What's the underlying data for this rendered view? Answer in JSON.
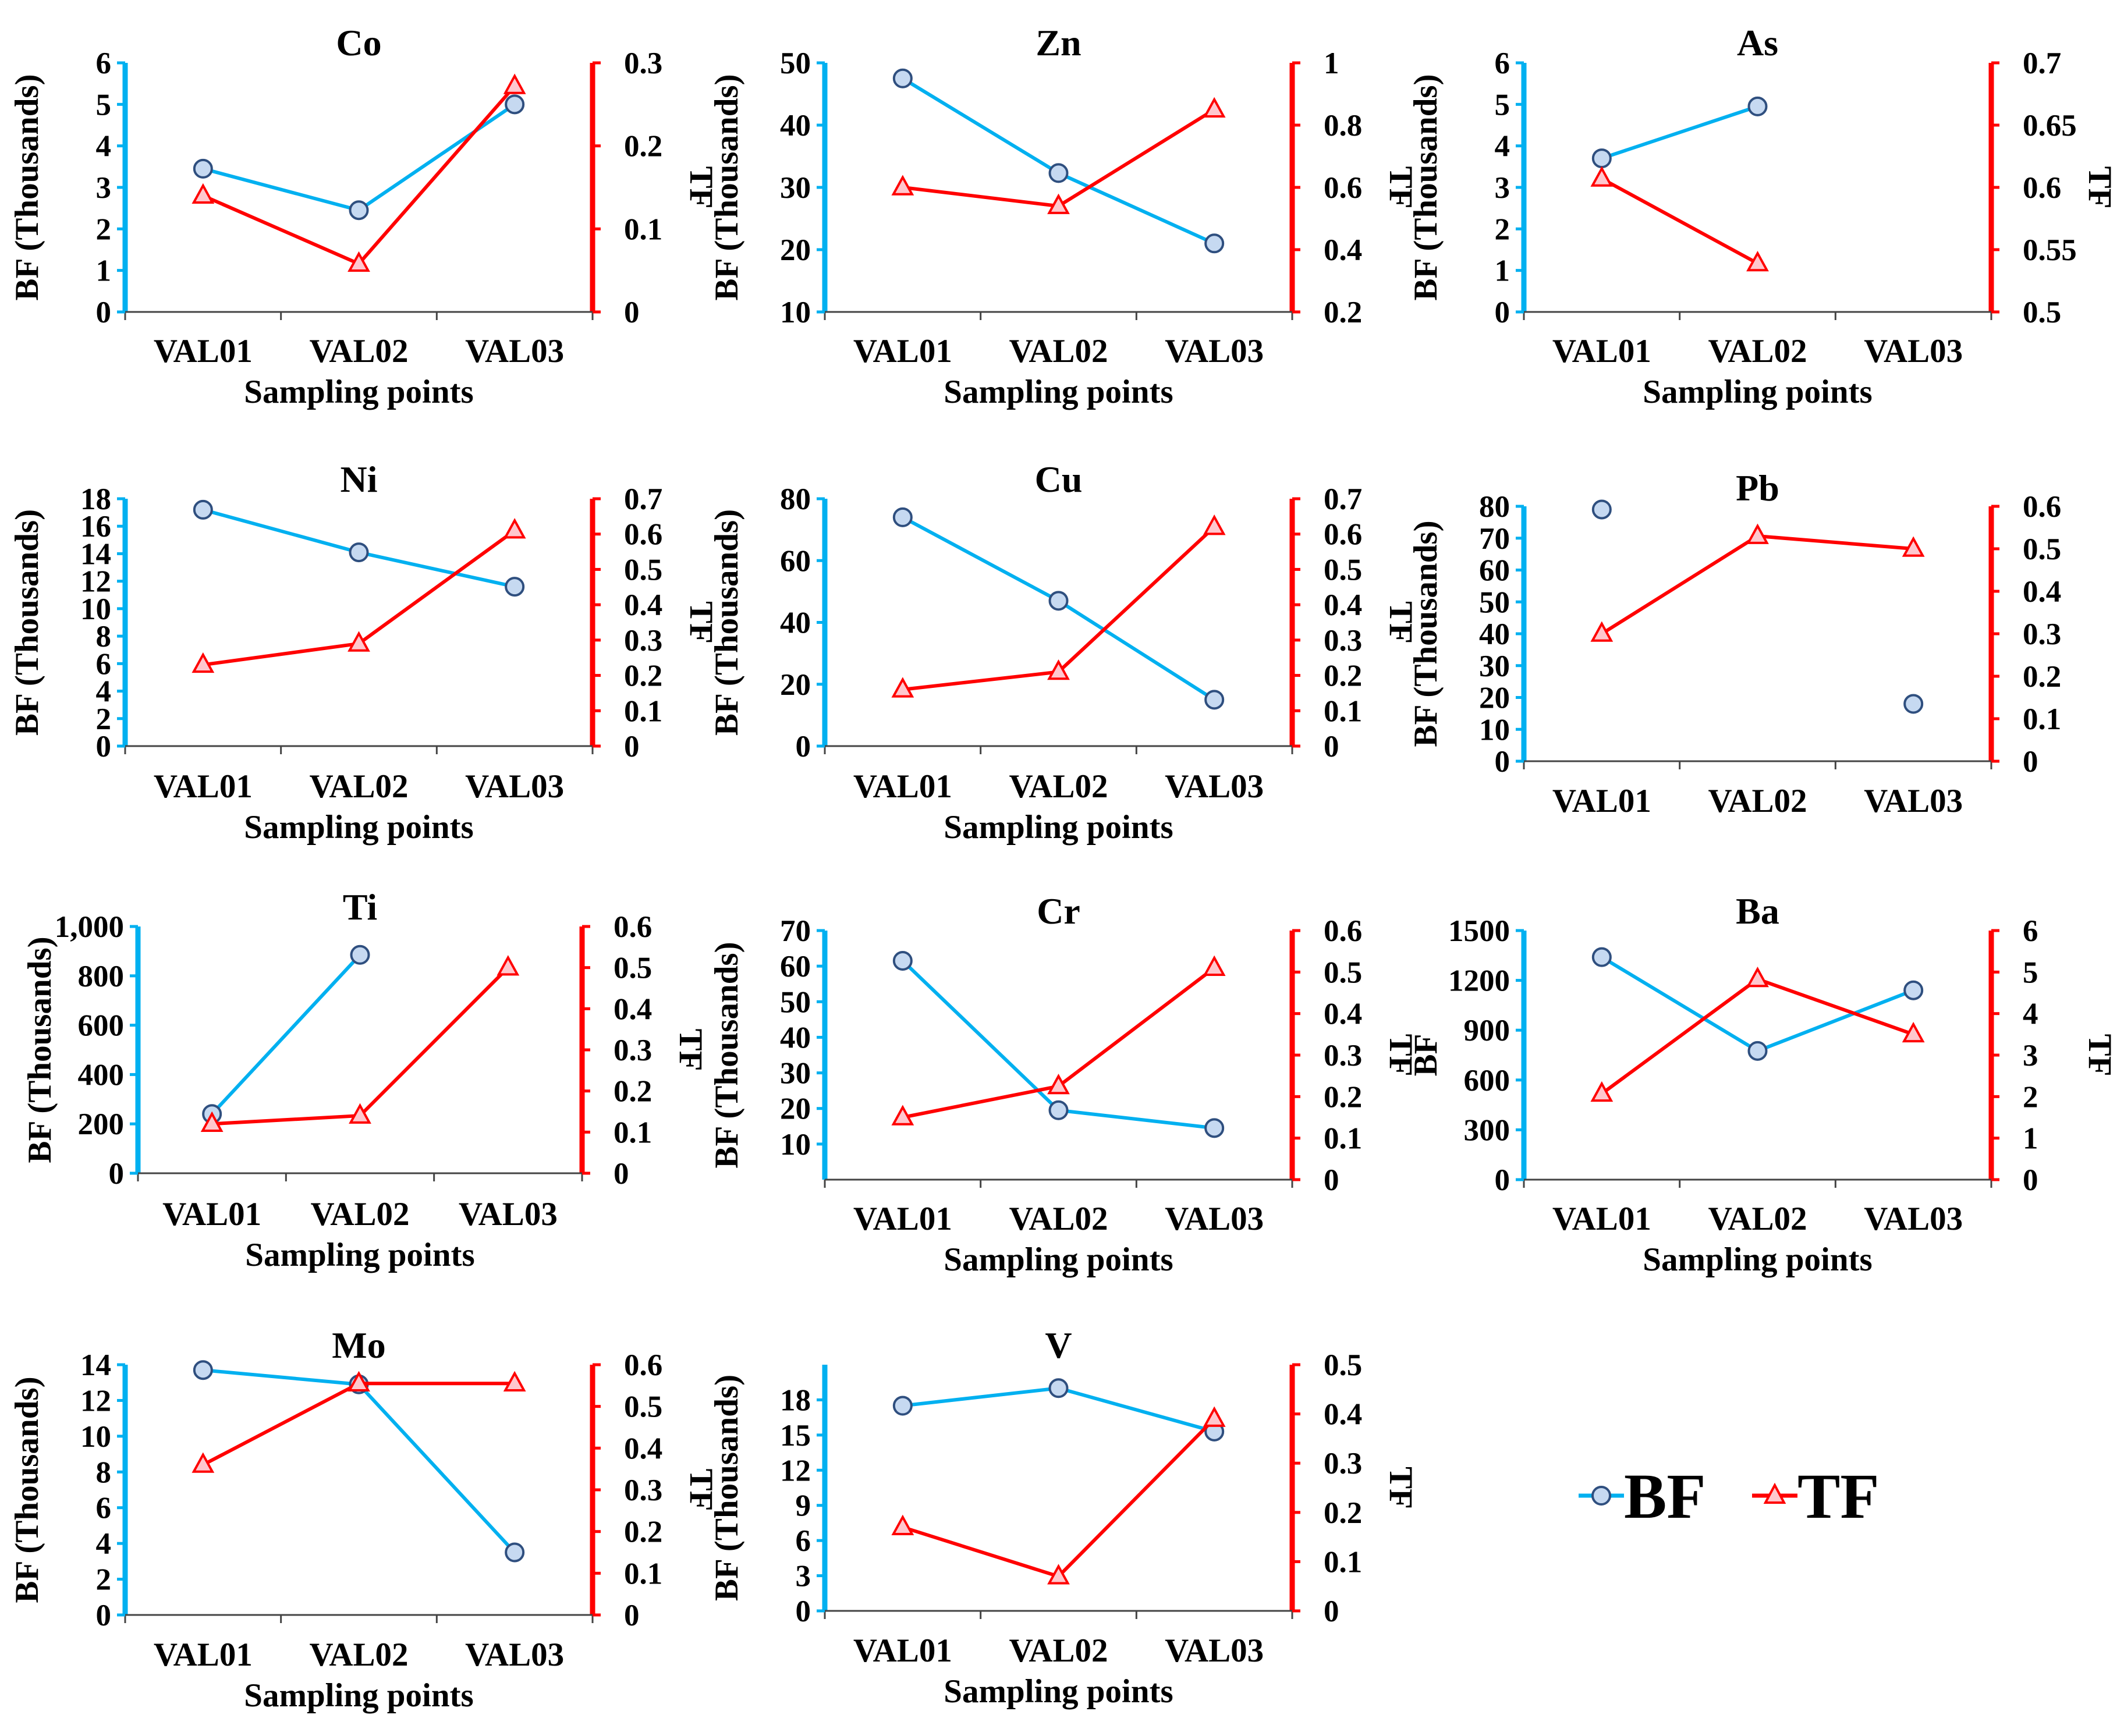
{
  "colors": {
    "bf": "#00B0F0",
    "tf": "#FF0000",
    "bf_marker_fill": "#C6D9F1",
    "bf_marker_stroke": "#2F4F7F",
    "tf_marker_fill": "#FFC7CE",
    "axis_text": "#000000"
  },
  "legend": {
    "bf": "BF",
    "tf": "TF"
  },
  "chart_data": [
    {
      "type": "line",
      "title": "Co",
      "xlabel": "Sampling points",
      "ylabel": "BF (Thousands)",
      "y2label": "TF",
      "categories": [
        "VAL01",
        "VAL02",
        "VAL03"
      ],
      "ylim": [
        0,
        6
      ],
      "yticks": [
        "0",
        "1",
        "2",
        "3",
        "4",
        "5",
        "6"
      ],
      "y2lim": [
        0,
        0.3
      ],
      "y2ticks": [
        "0",
        "0.1",
        "0.2",
        "0.3"
      ],
      "series": [
        {
          "name": "BF",
          "axis": "left",
          "values": [
            3.45,
            2.45,
            5.0
          ]
        },
        {
          "name": "TF",
          "axis": "right",
          "values": [
            0.14,
            0.058,
            0.272
          ]
        }
      ]
    },
    {
      "type": "line",
      "title": "Zn",
      "xlabel": "Sampling points",
      "ylabel": "BF (Thousands)",
      "y2label": "TF",
      "categories": [
        "VAL01",
        "VAL02",
        "VAL03"
      ],
      "ylim": [
        10,
        50
      ],
      "yticks": [
        "10",
        "20",
        "30",
        "40",
        "50"
      ],
      "y2lim": [
        0.2,
        1
      ],
      "y2ticks": [
        "0.2",
        "0.4",
        "0.6",
        "0.8",
        "1"
      ],
      "series": [
        {
          "name": "BF",
          "axis": "left",
          "values": [
            47.5,
            32.3,
            21
          ]
        },
        {
          "name": "TF",
          "axis": "right",
          "values": [
            0.6,
            0.54,
            0.85
          ]
        }
      ]
    },
    {
      "type": "line",
      "title": "As",
      "xlabel": "Sampling points",
      "ylabel": "BF (Thousands)",
      "y2label": "TF",
      "categories": [
        "VAL01",
        "VAL02",
        "VAL03"
      ],
      "ylim": [
        0,
        6
      ],
      "yticks": [
        "0",
        "1",
        "2",
        "3",
        "4",
        "5",
        "6"
      ],
      "y2lim": [
        0.5,
        0.7
      ],
      "y2ticks": [
        "0.5",
        "0.55",
        "0.6",
        "0.65",
        "0.7"
      ],
      "series": [
        {
          "name": "BF",
          "axis": "left",
          "values": [
            3.7,
            4.95,
            null
          ]
        },
        {
          "name": "TF",
          "axis": "right",
          "values": [
            0.607,
            0.539,
            null
          ]
        }
      ]
    },
    {
      "type": "line",
      "title": "Ni",
      "xlabel": "Sampling points",
      "ylabel": "BF  (Thousands)",
      "y2label": "TF",
      "categories": [
        "VAL01",
        "VAL02",
        "VAL03"
      ],
      "ylim": [
        0,
        18
      ],
      "yticks": [
        "0",
        "2",
        "4",
        "6",
        "8",
        "10",
        "12",
        "14",
        "16",
        "18"
      ],
      "y2lim": [
        0,
        0.7
      ],
      "y2ticks": [
        "0",
        "0.1",
        "0.2",
        "0.3",
        "0.4",
        "0.5",
        "0.6",
        "0.7"
      ],
      "series": [
        {
          "name": "BF",
          "axis": "left",
          "values": [
            17.2,
            14.1,
            11.6
          ]
        },
        {
          "name": "TF",
          "axis": "right",
          "values": [
            0.23,
            0.29,
            0.61
          ]
        }
      ]
    },
    {
      "type": "line",
      "title": "Cu",
      "xlabel": "Sampling points",
      "ylabel": "BF (Thousands)",
      "y2label": "TF",
      "categories": [
        "VAL01",
        "VAL02",
        "VAL03"
      ],
      "ylim": [
        0,
        80
      ],
      "yticks": [
        "0",
        "20",
        "40",
        "60",
        "80"
      ],
      "y2lim": [
        0,
        0.7
      ],
      "y2ticks": [
        "0",
        "0.1",
        "0.2",
        "0.3",
        "0.4",
        "0.5",
        "0.6",
        "0.7"
      ],
      "series": [
        {
          "name": "BF",
          "axis": "left",
          "values": [
            74,
            47,
            15
          ]
        },
        {
          "name": "TF",
          "axis": "right",
          "values": [
            0.16,
            0.21,
            0.62
          ]
        }
      ]
    },
    {
      "type": "line",
      "title": "Pb",
      "xlabel": "",
      "ylabel": "BF (Thousands)",
      "y2label": "",
      "categories": [
        "VAL01",
        "VAL02",
        "VAL03"
      ],
      "ylim": [
        0,
        80
      ],
      "yticks": [
        "0",
        "10",
        "20",
        "30",
        "40",
        "50",
        "60",
        "70",
        "80"
      ],
      "y2lim": [
        0,
        0.6
      ],
      "y2ticks": [
        "0",
        "0.1",
        "0.2",
        "0.3",
        "0.4",
        "0.5",
        "0.6"
      ],
      "series": [
        {
          "name": "BF",
          "axis": "left",
          "values": [
            79,
            null,
            18
          ],
          "lines": false
        },
        {
          "name": "TF",
          "axis": "right",
          "values": [
            0.3,
            0.53,
            0.5
          ]
        }
      ]
    },
    {
      "type": "line",
      "title": "Ti",
      "xlabel": "Sampling points",
      "ylabel": "BF  (Thousands)",
      "y2label": "TF",
      "categories": [
        "VAL01",
        "VAL02",
        "VAL03"
      ],
      "ylim": [
        0,
        1000
      ],
      "yticks": [
        "0",
        "200",
        "400",
        "600",
        "800",
        "1,000"
      ],
      "y2lim": [
        0,
        0.6
      ],
      "y2ticks": [
        "0",
        "0.1",
        "0.2",
        "0.3",
        "0.4",
        "0.5",
        "0.6"
      ],
      "series": [
        {
          "name": "BF",
          "axis": "left",
          "values": [
            240,
            885,
            null
          ]
        },
        {
          "name": "TF",
          "axis": "right",
          "values": [
            0.12,
            0.14,
            0.5
          ]
        }
      ]
    },
    {
      "type": "line",
      "title": "Cr",
      "xlabel": "Sampling points",
      "ylabel": "BF (Thousands)",
      "y2label": "TF",
      "categories": [
        "VAL01",
        "VAL02",
        "VAL03"
      ],
      "ylim": [
        0,
        70
      ],
      "yticks": [
        "10",
        "20",
        "30",
        "40",
        "50",
        "60",
        "70"
      ],
      "y2lim": [
        0,
        0.6
      ],
      "y2ticks": [
        "0",
        "0.1",
        "0.2",
        "0.3",
        "0.4",
        "0.5",
        "0.6"
      ],
      "series": [
        {
          "name": "BF",
          "axis": "left",
          "values": [
            61.5,
            19.5,
            14.5
          ]
        },
        {
          "name": "TF",
          "axis": "right",
          "values": [
            0.15,
            0.225,
            0.51
          ]
        }
      ]
    },
    {
      "type": "line",
      "title": "Ba",
      "xlabel": "Sampling points",
      "ylabel": "BF",
      "y2label": "TF",
      "categories": [
        "VAL01",
        "VAL02",
        "VAL03"
      ],
      "ylim": [
        0,
        1500
      ],
      "yticks": [
        "0",
        "300",
        "600",
        "900",
        "1200",
        "1500"
      ],
      "y2lim": [
        0,
        6
      ],
      "y2ticks": [
        "0",
        "1",
        "2",
        "3",
        "4",
        "5",
        "6"
      ],
      "series": [
        {
          "name": "BF",
          "axis": "left",
          "values": [
            1340,
            775,
            1140
          ]
        },
        {
          "name": "TF",
          "axis": "right",
          "values": [
            2.07,
            4.83,
            3.5
          ]
        }
      ]
    },
    {
      "type": "line",
      "title": "Mo",
      "xlabel": "Sampling points",
      "ylabel": "BF (Thousands)",
      "y2label": "TF",
      "categories": [
        "VAL01",
        "VAL02",
        "VAL03"
      ],
      "ylim": [
        0,
        14
      ],
      "yticks": [
        "0",
        "2",
        "4",
        "6",
        "8",
        "10",
        "12",
        "14"
      ],
      "y2lim": [
        0,
        0.6
      ],
      "y2ticks": [
        "0",
        "0.1",
        "0.2",
        "0.3",
        "0.4",
        "0.5",
        "0.6"
      ],
      "series": [
        {
          "name": "BF",
          "axis": "left",
          "values": [
            13.7,
            12.9,
            3.5
          ]
        },
        {
          "name": "TF",
          "axis": "right",
          "values": [
            0.36,
            0.555,
            0.555
          ]
        }
      ]
    },
    {
      "type": "line",
      "title": "V",
      "xlabel": "Sampling points",
      "ylabel": "BF (Thousands)",
      "y2label": "TF",
      "categories": [
        "VAL01",
        "VAL02",
        "VAL03"
      ],
      "ylim": [
        0,
        21
      ],
      "yticks": [
        "0",
        "3",
        "6",
        "9",
        "12",
        "15",
        "18"
      ],
      "y2lim": [
        0,
        0.5
      ],
      "y2ticks": [
        "0",
        "0.1",
        "0.2",
        "0.3",
        "0.4",
        "0.5"
      ],
      "series": [
        {
          "name": "BF",
          "axis": "left",
          "values": [
            17.5,
            19,
            15.3
          ]
        },
        {
          "name": "TF",
          "axis": "right",
          "values": [
            0.17,
            0.07,
            0.39
          ]
        }
      ]
    }
  ]
}
